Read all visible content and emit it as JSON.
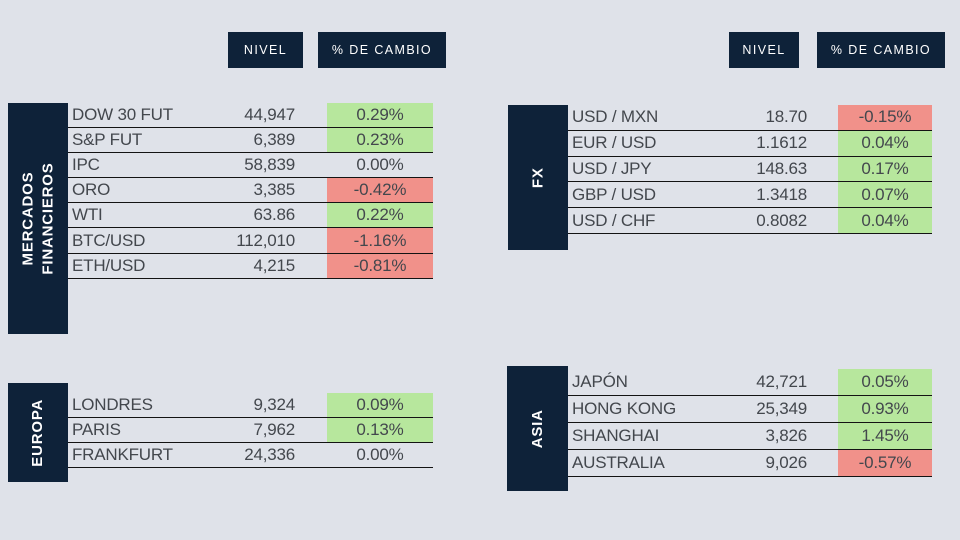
{
  "colors": {
    "background": "#DFE2E9",
    "navy": "#0E2239",
    "positive": "#B7E79D",
    "negative": "#F1918A",
    "text": "#43474D",
    "header_text": "#FFFFFF",
    "row_border": "#131313"
  },
  "column_headers": {
    "nivel": "NIVEL",
    "cambio": "% DE CAMBIO"
  },
  "sections": {
    "mercados": {
      "label": "MERCADOS\nFINANCIEROS",
      "rows": [
        {
          "name": "DOW 30 FUT",
          "level": "44,947",
          "change": "0.29%",
          "trend": "up"
        },
        {
          "name": "S&P FUT",
          "level": "6,389",
          "change": "0.23%",
          "trend": "up"
        },
        {
          "name": "IPC",
          "level": "58,839",
          "change": "0.00%",
          "trend": "flat"
        },
        {
          "name": "ORO",
          "level": "3,385",
          "change": "-0.42%",
          "trend": "down"
        },
        {
          "name": "WTI",
          "level": "63.86",
          "change": "0.22%",
          "trend": "up"
        },
        {
          "name": "BTC/USD",
          "level": "112,010",
          "change": "-1.16%",
          "trend": "down"
        },
        {
          "name": "ETH/USD",
          "level": "4,215",
          "change": "-0.81%",
          "trend": "down"
        }
      ]
    },
    "fx": {
      "label": "FX",
      "rows": [
        {
          "name": "USD / MXN",
          "level": "18.70",
          "change": "-0.15%",
          "trend": "down"
        },
        {
          "name": "EUR / USD",
          "level": "1.1612",
          "change": "0.04%",
          "trend": "up"
        },
        {
          "name": "USD / JPY",
          "level": "148.63",
          "change": "0.17%",
          "trend": "up"
        },
        {
          "name": "GBP / USD",
          "level": "1.3418",
          "change": "0.07%",
          "trend": "up"
        },
        {
          "name": "USD / CHF",
          "level": "0.8082",
          "change": "0.04%",
          "trend": "up"
        }
      ]
    },
    "europa": {
      "label": "EUROPA",
      "rows": [
        {
          "name": "LONDRES",
          "level": "9,324",
          "change": "0.09%",
          "trend": "up"
        },
        {
          "name": "PARIS",
          "level": "7,962",
          "change": "0.13%",
          "trend": "up"
        },
        {
          "name": "FRANKFURT",
          "level": "24,336",
          "change": "0.00%",
          "trend": "flat"
        }
      ]
    },
    "asia": {
      "label": "ASIA",
      "rows": [
        {
          "name": "JAPÓN",
          "level": "42,721",
          "change": "0.05%",
          "trend": "up"
        },
        {
          "name": "HONG KONG",
          "level": "25,349",
          "change": "0.93%",
          "trend": "up"
        },
        {
          "name": "SHANGHAI",
          "level": "3,826",
          "change": "1.45%",
          "trend": "up"
        },
        {
          "name": "AUSTRALIA",
          "level": "9,026",
          "change": "-0.57%",
          "trend": "down"
        }
      ]
    }
  }
}
